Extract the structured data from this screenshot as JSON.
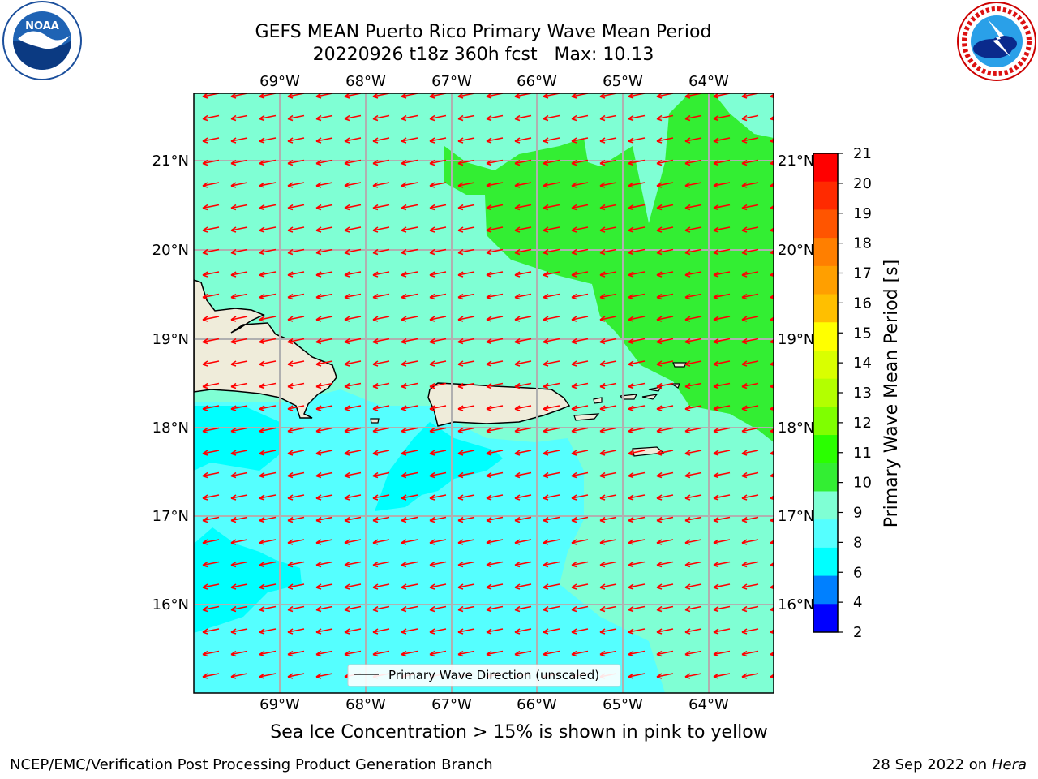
{
  "title": {
    "line1": "GEFS MEAN Puerto Rico Primary Wave Mean Period",
    "line2": "20220926 t18z 360h fcst   Max: 10.13"
  },
  "map": {
    "lon_labels": [
      "69°W",
      "68°W",
      "67°W",
      "66°W",
      "65°W",
      "64°W"
    ],
    "lat_labels": [
      "21°N",
      "20°N",
      "19°N",
      "18°N",
      "17°N",
      "16°N"
    ],
    "legend_label": "Primary Wave Direction (unscaled)"
  },
  "colorbar": {
    "label": "Primary Wave Mean Period [s]",
    "ticks": [
      "21",
      "20",
      "19",
      "18",
      "17",
      "16",
      "15",
      "14",
      "13",
      "12",
      "11",
      "10",
      "9",
      "8",
      "6",
      "4",
      "2"
    ],
    "colors": [
      "#ff0000",
      "#ff2a00",
      "#ff5500",
      "#ff7f00",
      "#ff9f00",
      "#ffbf00",
      "#ffff00",
      "#d9ff00",
      "#b3ff00",
      "#7fff00",
      "#2aff00",
      "#33ee33",
      "#7fffd4",
      "#55ffff",
      "#00ffff",
      "#0080ff",
      "#0000ff"
    ]
  },
  "colors": {
    "arrow": "#ff0000",
    "land": "#efecda",
    "period_9_10": "#7fffd4",
    "period_10_11": "#33ee33",
    "period_8_9": "#55ffff",
    "period_6_8": "#00ffff",
    "period_mid": "#95ffe0"
  },
  "caption": "Sea Ice Concentration > 15% is shown in pink to yellow",
  "footer": {
    "left": "NCEP/EMC/Verification Post Processing Product Generation Branch",
    "right_date": "28 Sep 2022 on",
    "right_host": "Hera"
  }
}
